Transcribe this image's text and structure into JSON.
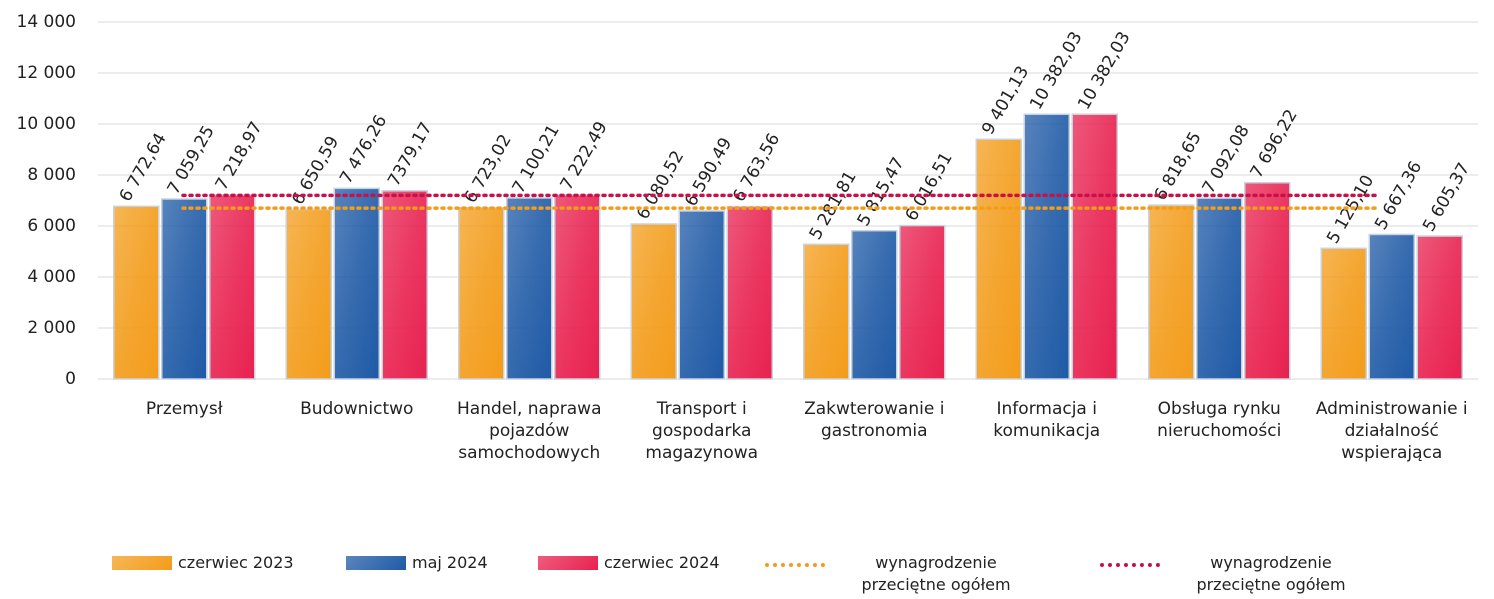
{
  "chart_data": {
    "type": "bar",
    "categories": [
      "Przemysł",
      "Budownictwo",
      "Handel, naprawa pojazdów samochodowych",
      "Transport i gospodarka magazynowa",
      "Zakwterowanie i gastronomia",
      "Informacja i komunikacja",
      "Obsługa rynku nieruchomości",
      "Administrowanie i działalność wspierająca"
    ],
    "series": [
      {
        "name": "czerwiec 2023",
        "color": "#f39c1a",
        "values": [
          6772.64,
          6650.59,
          6723.02,
          6080.52,
          5281.81,
          9401.13,
          6818.65,
          5125.1
        ],
        "value_labels": [
          "6 772,64",
          "6 650,59",
          "6 723,02",
          "6 080,52",
          "5 281,81",
          "9 401,13",
          "6 818,65",
          "5 125,10"
        ]
      },
      {
        "name": "maj 2024",
        "color": "#1f5aa6",
        "values": [
          7059.25,
          7476.26,
          7100.21,
          6590.49,
          5815.47,
          10382.03,
          7092.08,
          5667.36
        ],
        "value_labels": [
          "7 059,25",
          "7 476,26",
          "7 100,21",
          "6 590,49",
          "5 815,47",
          "10 382,03",
          "7 092,08",
          "5 667,36"
        ]
      },
      {
        "name": "czerwiec 2024",
        "color": "#e8214f",
        "values": [
          7218.97,
          7379.17,
          7222.49,
          6763.56,
          6016.51,
          10382.03,
          7696.22,
          5605.37
        ],
        "value_labels": [
          "7 218,97",
          "7379,17",
          "7 222,49",
          "6 763,56",
          "6 016,51",
          "10 382,03",
          "7 696,22",
          "5 605,37"
        ]
      }
    ],
    "reference_lines": [
      {
        "name": "wynagrodzenie przeciętne ogółem czerwiec 2023",
        "color": "#f39c1a",
        "value": 6700
      },
      {
        "name": "wynagrodzenie przeciętne ogółem czerwiec 2024",
        "color": "#c8104a",
        "value": 7200
      }
    ],
    "ylim": [
      0,
      14000
    ],
    "yticks": [
      0,
      {
        "value": 2000,
        "label": "2 000"
      },
      {
        "value": 4000,
        "label": "4 000"
      },
      {
        "value": 6000,
        "label": "6 000"
      },
      {
        "value": 8000,
        "label": "8 000"
      },
      {
        "value": 10000,
        "label": "10 000"
      },
      {
        "value": 12000,
        "label": "12 000"
      },
      {
        "value": 14000,
        "label": "14 000"
      }
    ],
    "grid": true
  }
}
